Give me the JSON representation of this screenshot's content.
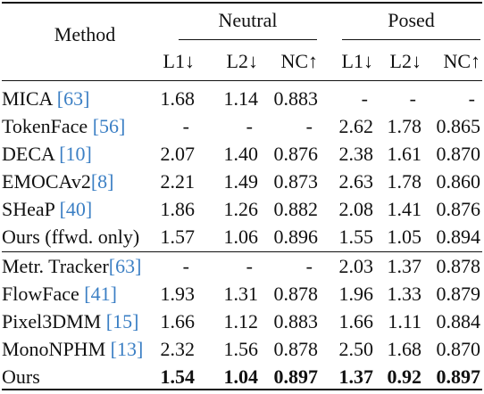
{
  "header": {
    "method": "Method",
    "groups": [
      "Neutral",
      "Posed"
    ],
    "metrics": [
      "L1↓",
      "L2↓",
      "NC↑",
      "L1↓",
      "L2↓",
      "NC↑"
    ]
  },
  "rows": [
    {
      "name": "MICA ",
      "ref": "[63]",
      "vals": [
        "1.68",
        "1.14",
        "0.883",
        "-",
        "-",
        "-"
      ]
    },
    {
      "name": "TokenFace ",
      "ref": "[56]",
      "vals": [
        "-",
        "-",
        "-",
        "2.62",
        "1.78",
        "0.865"
      ]
    },
    {
      "name": "DECA ",
      "ref": "[10]",
      "vals": [
        "2.07",
        "1.40",
        "0.876",
        "2.38",
        "1.61",
        "0.870"
      ]
    },
    {
      "name": "EMOCAv2",
      "ref": "[8]",
      "vals": [
        "2.21",
        "1.49",
        "0.873",
        "2.63",
        "1.78",
        "0.860"
      ]
    },
    {
      "name": "SHeaP ",
      "ref": "[40]",
      "vals": [
        "1.86",
        "1.26",
        "0.882",
        "2.08",
        "1.41",
        "0.876"
      ]
    },
    {
      "name": "Ours (ffwd. only)",
      "ref": "",
      "vals": [
        "1.57",
        "1.06",
        "0.896",
        "1.55",
        "1.05",
        "0.894"
      ]
    },
    {
      "name": "Metr. Tracker",
      "ref": "[63]",
      "vals": [
        "-",
        "-",
        "-",
        "2.03",
        "1.37",
        "0.878"
      ]
    },
    {
      "name": "FlowFace ",
      "ref": "[41]",
      "vals": [
        "1.93",
        "1.31",
        "0.878",
        "1.96",
        "1.33",
        "0.879"
      ]
    },
    {
      "name": "Pixel3DMM ",
      "ref": "[15]",
      "vals": [
        "1.66",
        "1.12",
        "0.883",
        "1.66",
        "1.11",
        "0.884"
      ]
    },
    {
      "name": "MonoNPHM ",
      "ref": "[13]",
      "vals": [
        "2.32",
        "1.56",
        "0.878",
        "2.50",
        "1.68",
        "0.870"
      ]
    },
    {
      "name": "Ours",
      "ref": "",
      "bold": true,
      "vals": [
        "1.54",
        "1.04",
        "0.897",
        "1.37",
        "0.92",
        "0.897"
      ]
    }
  ]
}
